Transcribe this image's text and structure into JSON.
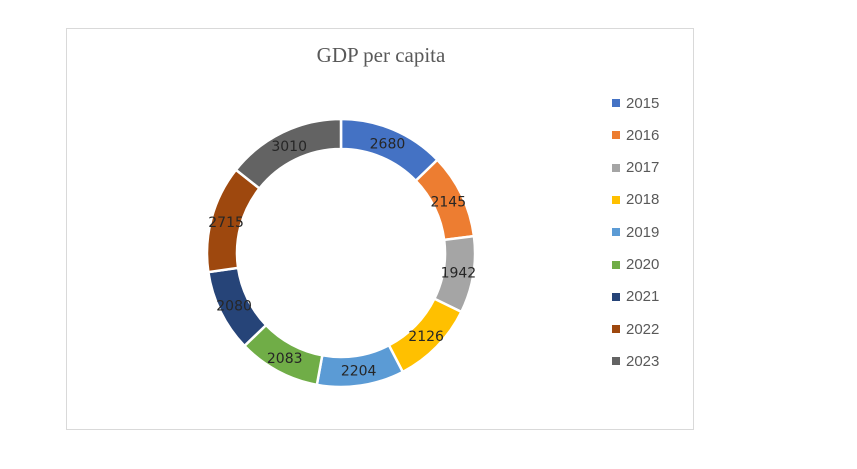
{
  "chart_data": {
    "type": "pie",
    "variant": "donut",
    "title": "GDP per capita",
    "categories": [
      "2015",
      "2016",
      "2017",
      "2018",
      "2019",
      "2020",
      "2021",
      "2022",
      "2023"
    ],
    "values": [
      2680,
      2145,
      1942,
      2126,
      2204,
      2083,
      2080,
      2715,
      3010
    ],
    "colors": [
      "#4472C4",
      "#ED7D31",
      "#A5A5A5",
      "#FFC000",
      "#5B9BD5",
      "#70AD47",
      "#264478",
      "#9E480E",
      "#636363"
    ],
    "legend_position": "right",
    "data_labels": true
  }
}
